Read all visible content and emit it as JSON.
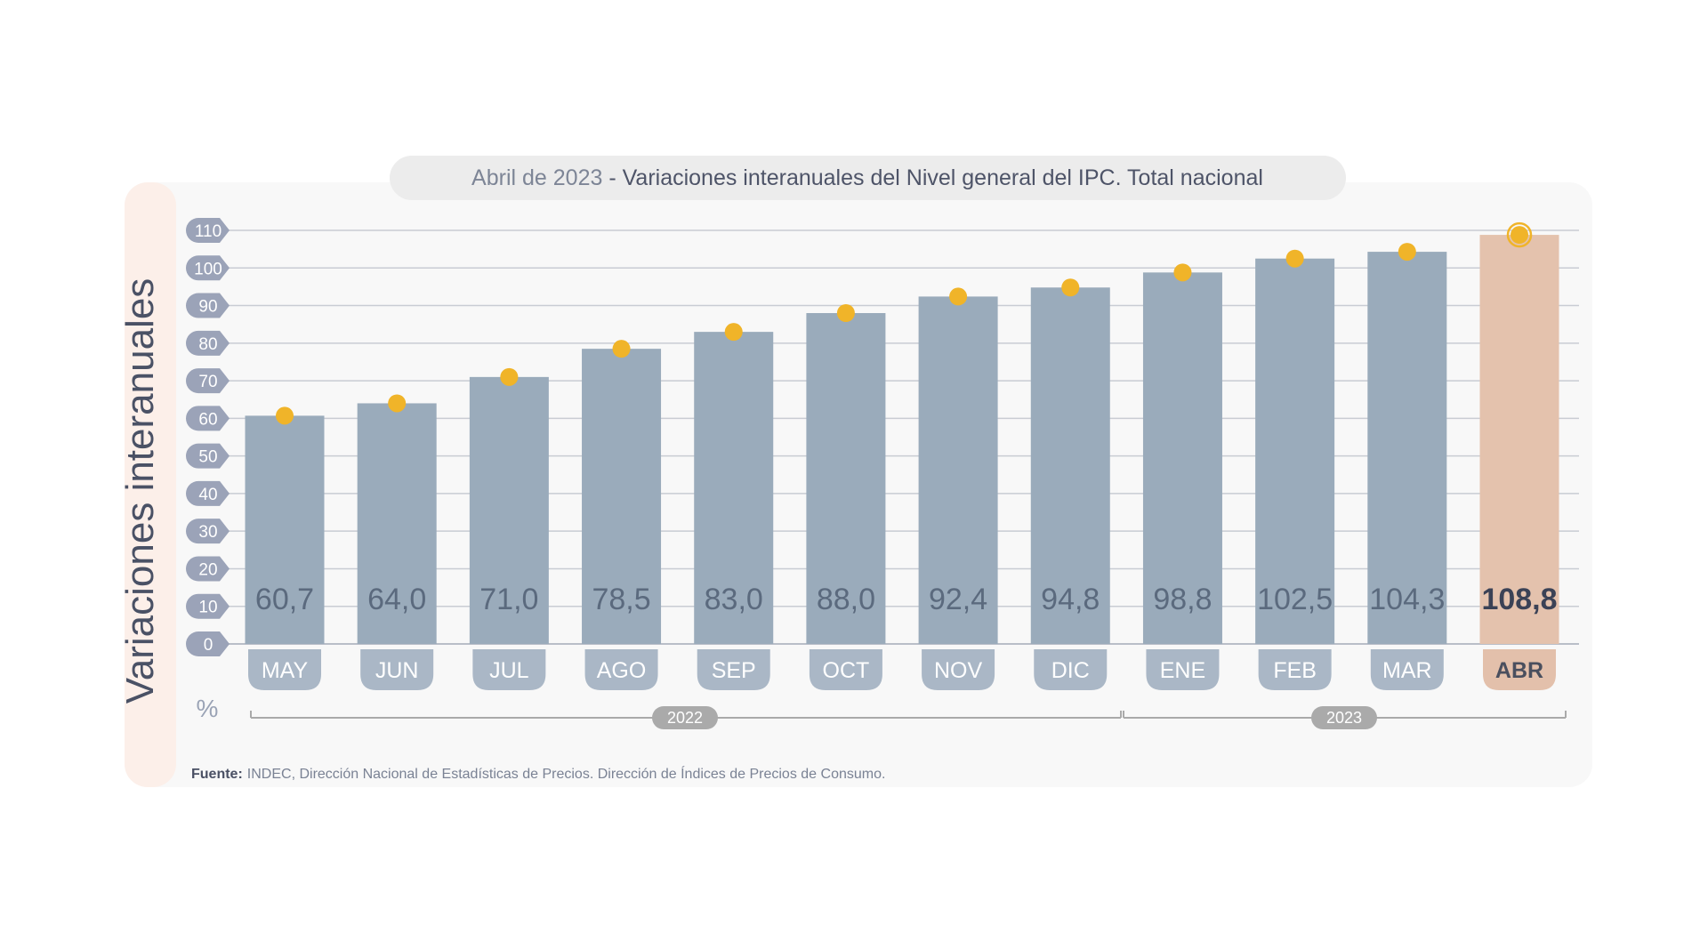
{
  "header": {
    "title_prefix": "Abril de 2023",
    "title_separator": " - ",
    "title_main": "Variaciones interanuales del Nivel general del IPC. Total nacional"
  },
  "source": {
    "label": "Fuente:",
    "text": "INDEC, Dirección Nacional de Estadísticas de Precios. Dirección de Índices de Precios de Consumo."
  },
  "colors": {
    "bar": "#9aabbb",
    "bar_highlight": "#e4c2ad",
    "marker": "#f0b429",
    "tick_badge": "#9ba3b8",
    "category_badge": "#aab7c6",
    "category_badge_highlight": "#e3c0ab",
    "year_badge": "#aaaaaa"
  },
  "chart_data": {
    "type": "bar",
    "title": "Abril de 2023 - Variaciones interanuales del Nivel general del IPC. Total nacional",
    "ylabel": "Variaciones interanuales",
    "yunit": "%",
    "ylim": [
      0,
      110
    ],
    "yticks": [
      "0",
      "10",
      "20",
      "30",
      "40",
      "50",
      "60",
      "70",
      "80",
      "90",
      "100",
      "110"
    ],
    "grid": true,
    "categories": [
      "MAY",
      "JUN",
      "JUL",
      "AGO",
      "SEP",
      "OCT",
      "NOV",
      "DIC",
      "ENE",
      "FEB",
      "MAR",
      "ABR"
    ],
    "values": [
      60.7,
      64.0,
      71.0,
      78.5,
      83.0,
      88.0,
      92.4,
      94.8,
      98.8,
      102.5,
      104.3,
      108.8
    ],
    "value_labels": [
      "60,7",
      "64,0",
      "71,0",
      "78,5",
      "83,0",
      "88,0",
      "92,4",
      "94,8",
      "98,8",
      "102,5",
      "104,3",
      "108,8"
    ],
    "highlight_category": "ABR",
    "year_groups": [
      {
        "label": "2022",
        "from": "MAY",
        "to": "DIC"
      },
      {
        "label": "2023",
        "from": "ENE",
        "to": "ABR"
      }
    ]
  }
}
